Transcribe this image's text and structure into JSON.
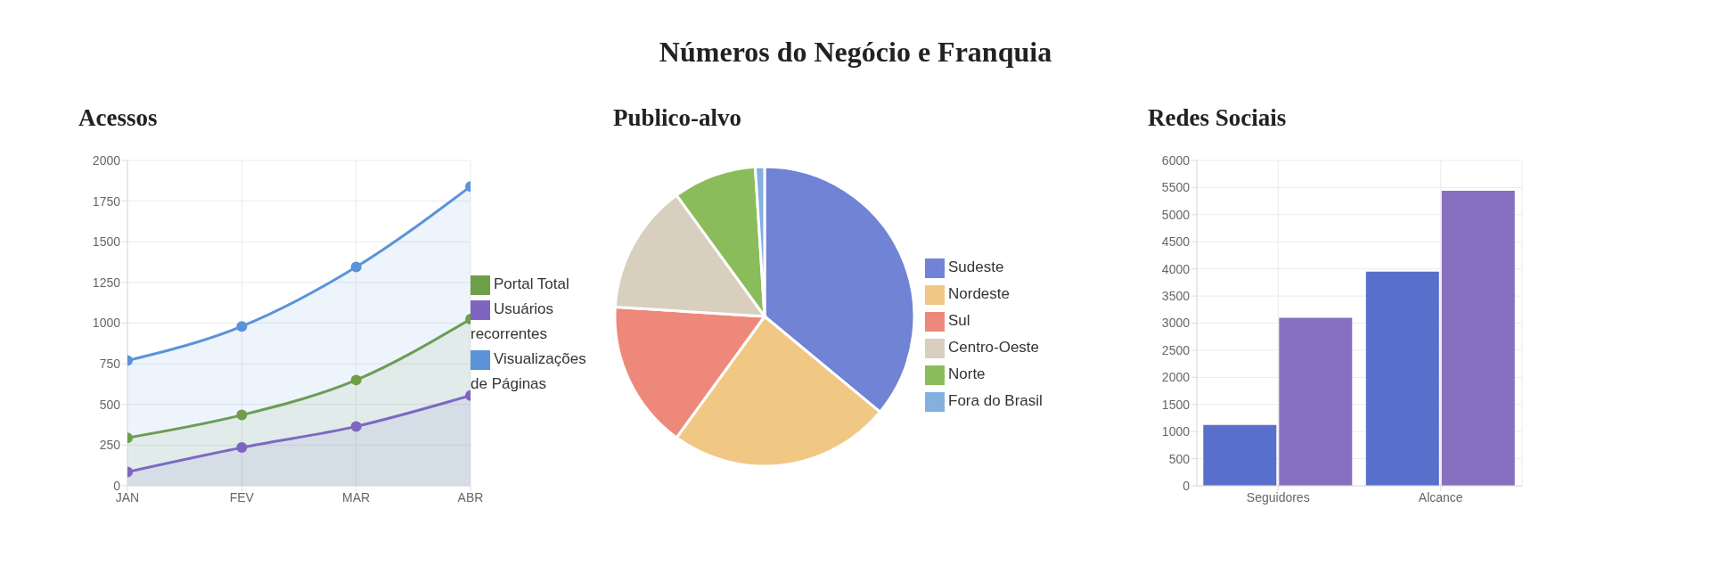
{
  "chart_data": [
    {
      "type": "other",
      "title": "Números do Negócio e Franquia"
    },
    {
      "type": "area",
      "title": "Acessos",
      "categories": [
        "JAN",
        "FEV",
        "MAR",
        "ABR"
      ],
      "ylim": [
        0,
        2000
      ],
      "yticks": [
        0,
        250,
        500,
        750,
        1000,
        1250,
        1500,
        1750,
        2000
      ],
      "grid": true,
      "legend": "right",
      "marker": "circle",
      "series": [
        {
          "name": "Portal Total",
          "color": "#6e9f48",
          "values": [
            295,
            435,
            650,
            1025
          ]
        },
        {
          "name": "Usuários recorrentes",
          "color": "#7f65c0",
          "values": [
            85,
            235,
            365,
            555
          ]
        },
        {
          "name": "Visualizações de Páginas",
          "color": "#5b93d8",
          "values": [
            770,
            980,
            1345,
            1840
          ]
        }
      ]
    },
    {
      "type": "pie",
      "title": "Publico-alvo",
      "categories": [
        "Sudeste",
        "Nordeste",
        "Sul",
        "Centro-Oeste",
        "Norte",
        "Fora do Brasil"
      ],
      "values": [
        36,
        24,
        16,
        14,
        9,
        1
      ],
      "colors": [
        "#7083d4",
        "#f0c884",
        "#ee887a",
        "#d8cfbf",
        "#8bbc5b",
        "#84b0e0"
      ],
      "legend": "right"
    },
    {
      "type": "bar",
      "title": "Redes Sociais",
      "categories": [
        "Seguidores",
        "Alcance"
      ],
      "ylim": [
        0,
        6000
      ],
      "yticks": [
        0,
        500,
        1000,
        1500,
        2000,
        2500,
        3000,
        3500,
        4000,
        4500,
        5000,
        5500,
        6000
      ],
      "grid": true,
      "series": [
        {
          "color": "#5870cb",
          "values": [
            1120,
            3950
          ]
        },
        {
          "color": "#8870c0",
          "values": [
            3100,
            5440
          ]
        }
      ]
    }
  ]
}
